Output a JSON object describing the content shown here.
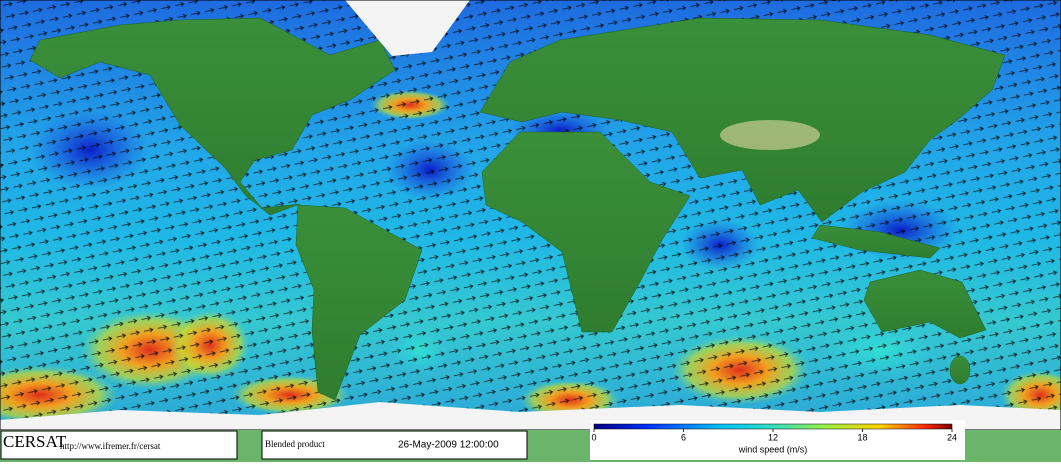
{
  "footer": {
    "logo": "CERSAT",
    "url": "http://www.ifremer.fr/cersat",
    "product": "Blended product",
    "date": "26-May-2009 12:00:00"
  },
  "colorbar": {
    "label": "wind speed (m/s)",
    "lim": [
      0,
      24
    ],
    "ticks": [
      0,
      6,
      12,
      18,
      24
    ]
  }
}
